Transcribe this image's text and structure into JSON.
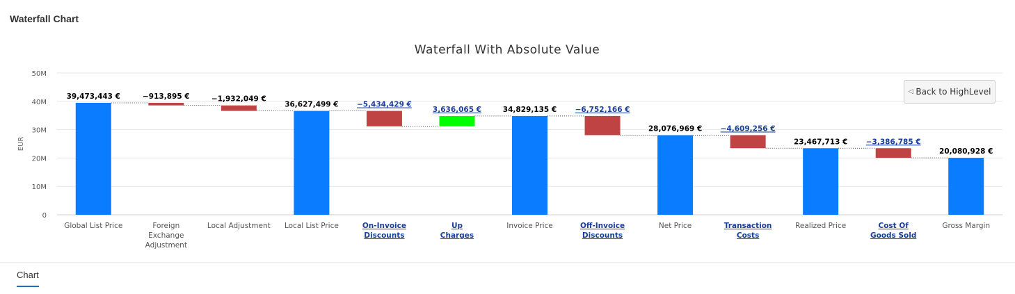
{
  "panel": {
    "title": "Waterfall Chart"
  },
  "tabs": [
    {
      "label": "Chart",
      "active": true
    }
  ],
  "back_button": {
    "label": "Back to HighLevel",
    "icon": "triangle-left-icon"
  },
  "colors": {
    "total": "#0a7cff",
    "decrease": "#c04343",
    "increase": "#00ff00",
    "link": "#1a3e9a",
    "axis_text": "#555555"
  },
  "chart_data": {
    "type": "bar",
    "subtype": "waterfall",
    "title": "Waterfall With Absolute Value",
    "ylabel": "EUR",
    "xlabel": "",
    "ylim": [
      0,
      50000000
    ],
    "yticks": [
      0,
      10000000,
      20000000,
      30000000,
      40000000,
      50000000
    ],
    "ytick_labels": [
      "0",
      "10M",
      "20M",
      "30M",
      "40M",
      "50M"
    ],
    "bars": [
      {
        "category": "Global List Price",
        "type": "total",
        "start": 0,
        "end": 39473443,
        "label": "39,473,443 €",
        "link": false
      },
      {
        "category": "Foreign Exchange Adjustment",
        "type": "decrease",
        "start": 39473443,
        "end": 38559548,
        "label": "−913,895 €",
        "link": false
      },
      {
        "category": "Local Adjustment",
        "type": "decrease",
        "start": 38559548,
        "end": 36627499,
        "label": "−1,932,049 €",
        "link": false
      },
      {
        "category": "Local List Price",
        "type": "total",
        "start": 0,
        "end": 36627499,
        "label": "36,627,499 €",
        "link": false
      },
      {
        "category": "On-Invoice Discounts",
        "type": "decrease",
        "start": 36627499,
        "end": 31193070,
        "label": "−5,434,429 €",
        "link": true
      },
      {
        "category": "Up Charges",
        "type": "increase",
        "start": 31193070,
        "end": 34829135,
        "label": "3,636,065 €",
        "link": true
      },
      {
        "category": "Invoice Price",
        "type": "total",
        "start": 0,
        "end": 34829135,
        "label": "34,829,135 €",
        "link": false
      },
      {
        "category": "Off-Invoice Discounts",
        "type": "decrease",
        "start": 34829135,
        "end": 28076969,
        "label": "−6,752,166 €",
        "link": true
      },
      {
        "category": "Net Price",
        "type": "total",
        "start": 0,
        "end": 28076969,
        "label": "28,076,969 €",
        "link": false
      },
      {
        "category": "Transaction Costs",
        "type": "decrease",
        "start": 28076969,
        "end": 23467713,
        "label": "−4,609,256 €",
        "link": true
      },
      {
        "category": "Realized Price",
        "type": "total",
        "start": 0,
        "end": 23467713,
        "label": "23,467,713 €",
        "link": false
      },
      {
        "category": "Cost Of Goods Sold",
        "type": "decrease",
        "start": 23467713,
        "end": 20080928,
        "label": "−3,386,785 €",
        "link": true
      },
      {
        "category": "Gross Margin",
        "type": "total",
        "start": 0,
        "end": 20080928,
        "label": "20,080,928 €",
        "link": false
      }
    ]
  }
}
